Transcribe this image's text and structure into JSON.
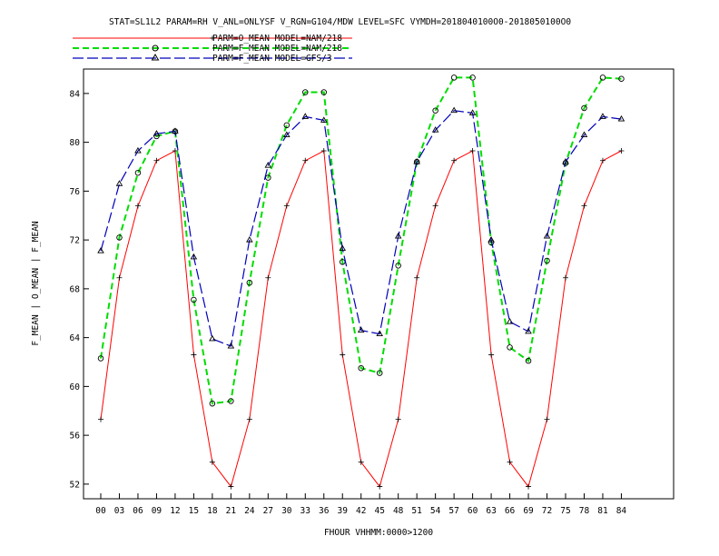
{
  "chart_data": {
    "type": "line",
    "title": "STAT=SL1L2 PARAM=RH V_ANL=ONLYSF V_RGN=G104/MDW LEVEL=SFC VYMDH=2018040100O0-2018050100O0",
    "xlabel": "FHOUR VHHMM:0000>1200",
    "ylabel": "F_MEAN | O_MEAN | F_MEAN",
    "x": [
      "00",
      "03",
      "06",
      "09",
      "12",
      "15",
      "18",
      "21",
      "24",
      "27",
      "30",
      "33",
      "36",
      "39",
      "42",
      "45",
      "48",
      "51",
      "54",
      "57",
      "60",
      "63",
      "66",
      "69",
      "72",
      "75",
      "78",
      "81",
      "84"
    ],
    "yticks": [
      52,
      56,
      60,
      64,
      68,
      72,
      76,
      80,
      84
    ],
    "ylim": [
      50.8,
      86
    ],
    "grid": false,
    "legend_position": "top-left",
    "series": [
      {
        "name": "PARM=O_MEAN MODEL=NAM/218",
        "color": "#ff0000",
        "style": "solid",
        "marker": "plus",
        "values": [
          57.3,
          68.9,
          74.8,
          78.5,
          79.3,
          62.6,
          53.8,
          51.8,
          57.3,
          68.9,
          74.8,
          78.5,
          79.3,
          62.6,
          53.8,
          51.8,
          57.3,
          68.9,
          74.8,
          78.5,
          79.3,
          62.6,
          53.8,
          51.8,
          57.3,
          68.9,
          74.8,
          78.5,
          79.3
        ]
      },
      {
        "name": "PARM=F_MEAN MODEL=NAM/218",
        "color": "#00dd00",
        "style": "dashed",
        "marker": "circle",
        "values": [
          62.3,
          72.2,
          77.5,
          80.5,
          80.9,
          67.1,
          58.6,
          58.8,
          68.5,
          77.1,
          81.4,
          84.1,
          84.1,
          70.2,
          61.5,
          61.1,
          69.9,
          78.4,
          82.6,
          85.3,
          85.3,
          71.8,
          63.2,
          62.1,
          70.3,
          78.3,
          82.8,
          85.3,
          85.2
        ]
      },
      {
        "name": "PARM=F_MEAN MODEL=GFS/3",
        "color": "#0000bb",
        "style": "dashed",
        "marker": "triangle",
        "values": [
          71.1,
          76.6,
          79.3,
          80.7,
          80.9,
          70.6,
          63.9,
          63.3,
          72.0,
          78.1,
          80.6,
          82.1,
          81.8,
          71.3,
          64.6,
          64.3,
          72.3,
          78.4,
          81.0,
          82.6,
          82.4,
          72.0,
          65.3,
          64.5,
          72.3,
          78.4,
          80.6,
          82.1,
          81.9
        ]
      }
    ]
  }
}
